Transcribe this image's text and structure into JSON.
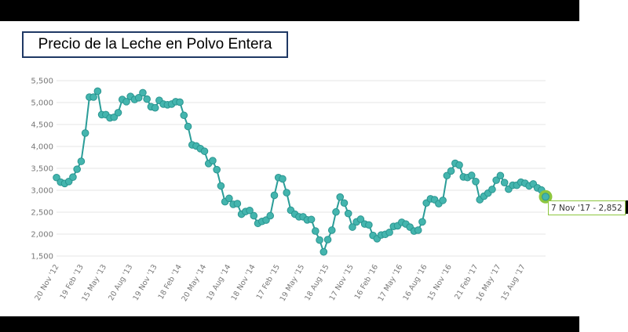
{
  "title": "Precio de la Leche en Polvo Entera",
  "colors": {
    "line": "#2a9d98",
    "marker_fill": "#44b5ae",
    "marker_stroke": "#2a9590",
    "highlight": "#8dc63f",
    "grid": "#e6e6e6"
  },
  "tooltip": {
    "text": "7 Nov '17 - 2,852"
  },
  "chart_data": {
    "type": "line",
    "title": "Precio de la Leche en Polvo Entera",
    "xlabel": "",
    "ylabel": "",
    "x_range": [
      "2012-11-20",
      "2017-11-07"
    ],
    "ylim": [
      1500,
      5500
    ],
    "grid": true,
    "y_ticks": [
      {
        "value": 1500,
        "label": "1,500"
      },
      {
        "value": 2000,
        "label": "2,000"
      },
      {
        "value": 2500,
        "label": "2,500"
      },
      {
        "value": 3000,
        "label": "3,000"
      },
      {
        "value": 3500,
        "label": "3,500"
      },
      {
        "value": 4000,
        "label": "4,000"
      },
      {
        "value": 4500,
        "label": "4,500"
      },
      {
        "value": 5000,
        "label": "5,000"
      },
      {
        "value": 5500,
        "label": "5,500"
      }
    ],
    "x_ticks": [
      {
        "date": "2012-11-20",
        "label": "20 Nov '12"
      },
      {
        "date": "2013-02-19",
        "label": "19 Feb '13"
      },
      {
        "date": "2013-05-15",
        "label": "15 May '13"
      },
      {
        "date": "2013-08-20",
        "label": "20 Aug '13"
      },
      {
        "date": "2013-11-19",
        "label": "19 Nov '13"
      },
      {
        "date": "2014-02-18",
        "label": "18 Feb '14"
      },
      {
        "date": "2014-05-20",
        "label": "20 May '14"
      },
      {
        "date": "2014-08-19",
        "label": "19 Aug '14"
      },
      {
        "date": "2014-11-18",
        "label": "18 Nov '14"
      },
      {
        "date": "2015-02-17",
        "label": "17 Feb '15"
      },
      {
        "date": "2015-05-19",
        "label": "19 May '15"
      },
      {
        "date": "2015-08-18",
        "label": "18 Aug '15"
      },
      {
        "date": "2015-11-17",
        "label": "17 Nov '15"
      },
      {
        "date": "2016-02-16",
        "label": "16 Feb '16"
      },
      {
        "date": "2016-05-17",
        "label": "17 May '16"
      },
      {
        "date": "2016-08-16",
        "label": "16 Aug '16"
      },
      {
        "date": "2016-11-15",
        "label": "15 Nov '16"
      },
      {
        "date": "2017-02-21",
        "label": "21 Feb '17"
      },
      {
        "date": "2017-05-16",
        "label": "16 May '17"
      },
      {
        "date": "2017-08-15",
        "label": "15 Aug '17"
      }
    ],
    "series": [
      {
        "values": [
          3290,
          3185,
          3155,
          3200,
          3300,
          3480,
          3660,
          4305,
          5125,
          5125,
          5260,
          4725,
          4725,
          4650,
          4665,
          4770,
          5070,
          5020,
          5140,
          5070,
          5110,
          5225,
          5080,
          4905,
          4880,
          5050,
          4965,
          4950,
          4965,
          5020,
          5010,
          4710,
          4455,
          4035,
          4010,
          3950,
          3890,
          3610,
          3675,
          3470,
          3100,
          2740,
          2815,
          2680,
          2695,
          2455,
          2515,
          2540,
          2420,
          2245,
          2290,
          2320,
          2420,
          2885,
          3290,
          3260,
          2945,
          2545,
          2455,
          2395,
          2395,
          2325,
          2335,
          2070,
          1865,
          1595,
          1875,
          2090,
          2505,
          2845,
          2710,
          2470,
          2160,
          2280,
          2340,
          2230,
          2210,
          1970,
          1895,
          1980,
          1995,
          2040,
          2175,
          2190,
          2270,
          2230,
          2160,
          2070,
          2090,
          2280,
          2710,
          2805,
          2785,
          2695,
          2770,
          3335,
          3440,
          3615,
          3575,
          3305,
          3290,
          3340,
          3200,
          2785,
          2865,
          2935,
          3020,
          3230,
          3335,
          3175,
          3025,
          3115,
          3115,
          3185,
          3160,
          3100,
          3145,
          3055,
          3005,
          2852
        ]
      }
    ],
    "highlight": {
      "date": "2017-11-07",
      "value": 2852,
      "label": "7 Nov '17 - 2,852"
    }
  }
}
